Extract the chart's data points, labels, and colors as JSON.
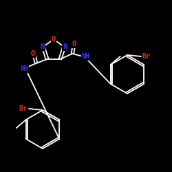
{
  "background_color": "#000000",
  "bond_color": "#ffffff",
  "atom_colors": {
    "O": "#ff3300",
    "N": "#3333ff",
    "Br": "#cc3300",
    "C": "#ffffff",
    "H": "#ffffff"
  },
  "figsize": [
    2.5,
    2.5
  ],
  "dpi": 100
}
